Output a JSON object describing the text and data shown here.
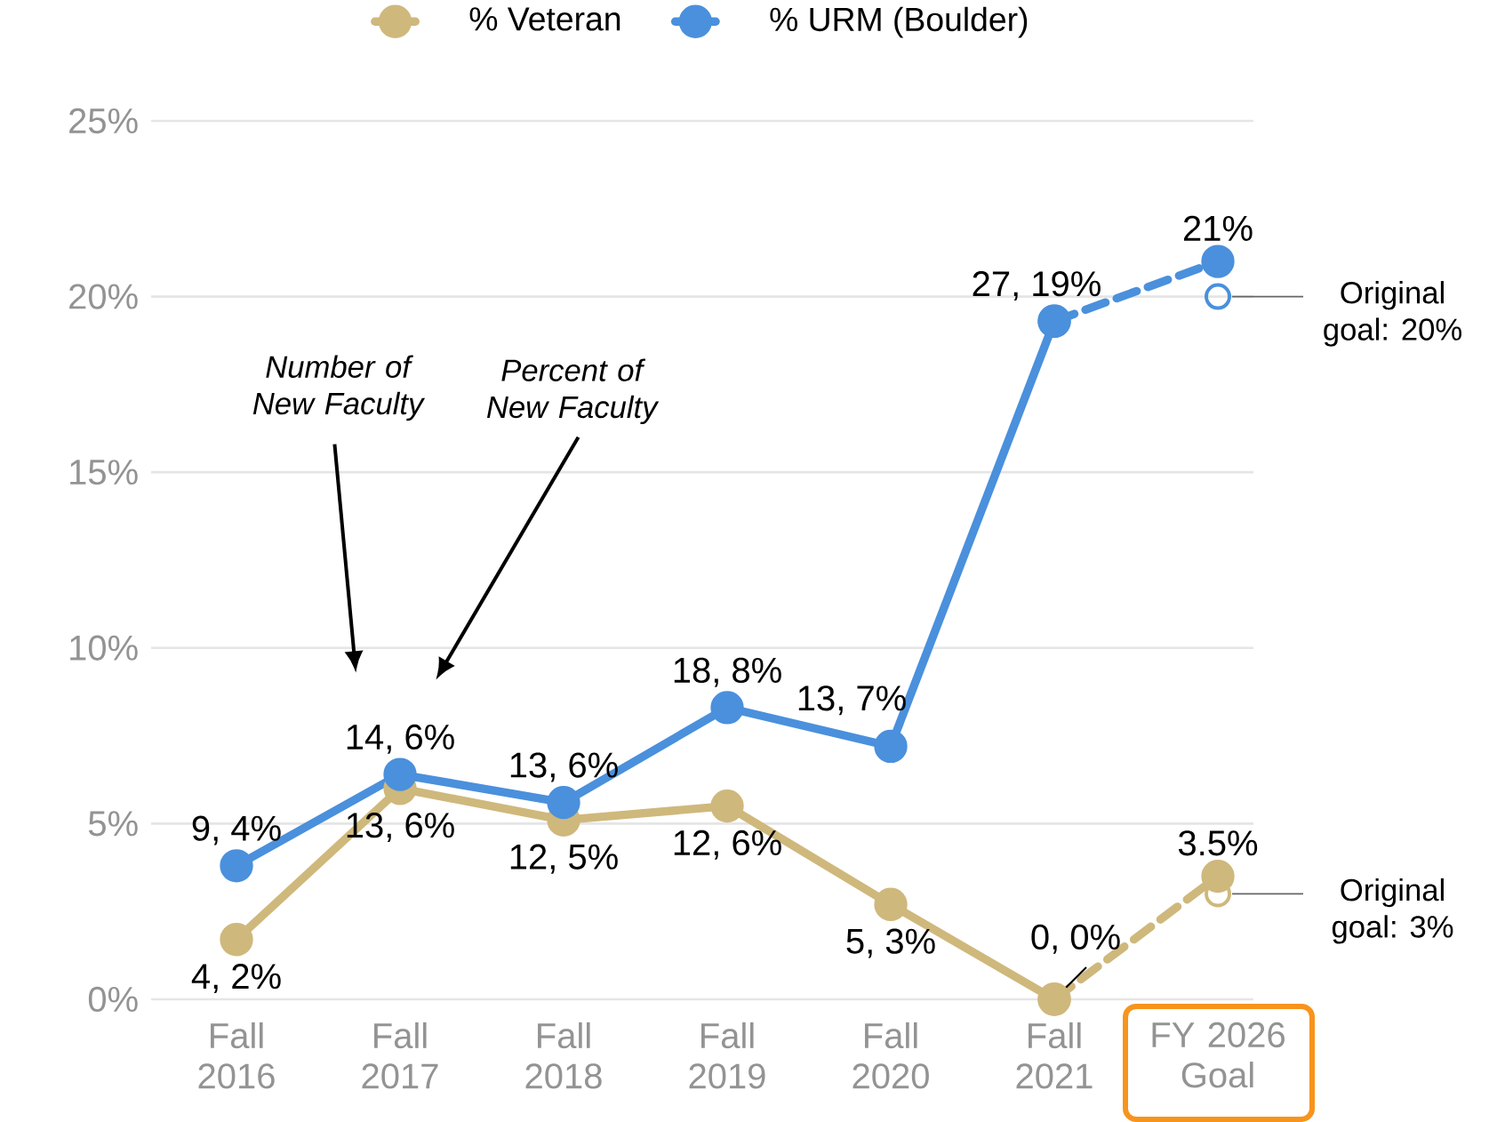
{
  "chart_data": {
    "type": "line",
    "categories": [
      "Fall 2016",
      "Fall 2017",
      "Fall 2018",
      "Fall 2019",
      "Fall 2020",
      "Fall 2021",
      "FY 2026 Goal"
    ],
    "ylim": [
      0,
      25
    ],
    "yticks": [
      {
        "value": 0,
        "label": "0%"
      },
      {
        "value": 5,
        "label": "5%"
      },
      {
        "value": 10,
        "label": "10%"
      },
      {
        "value": 15,
        "label": "15%"
      },
      {
        "value": 20,
        "label": "20%"
      },
      {
        "value": 25,
        "label": "25%"
      }
    ],
    "grid": "y",
    "legend": "top",
    "marker": "circle",
    "series": [
      {
        "name": "% Veteran",
        "color": "#cfb87c",
        "values": [
          1.7,
          6.0,
          5.1,
          5.5,
          2.7,
          0,
          null
        ],
        "value_labels": [
          "4, 2%",
          "13, 6%",
          "12, 5%",
          "12, 6%",
          "5, 3%",
          "0, 0%",
          null
        ]
      },
      {
        "name": "% URM (Boulder)",
        "color": "#4a90dc",
        "values": [
          3.8,
          6.4,
          5.6,
          8.3,
          7.2,
          19.3,
          null
        ],
        "value_labels": [
          "9, 4%",
          "14, 6%",
          "13, 6%",
          "18, 8%",
          "13, 7%",
          "27, 19%",
          null
        ]
      },
      {
        "color": "#cfb87c",
        "line_style": "dashed",
        "values": [
          null,
          null,
          null,
          null,
          null,
          0,
          3.5
        ],
        "value_labels": [
          null,
          null,
          null,
          null,
          null,
          null,
          "3.5%"
        ]
      },
      {
        "color": "#4a90dc",
        "line_style": "dashed",
        "values": [
          null,
          null,
          null,
          null,
          null,
          19.3,
          21.0
        ],
        "value_labels": [
          null,
          null,
          null,
          null,
          null,
          null,
          "21%"
        ]
      },
      {
        "type": "scatter",
        "color": "#4a90dc",
        "values": [
          null,
          null,
          null,
          null,
          null,
          null,
          20
        ]
      },
      {
        "type": "scatter",
        "color": "#cfb87c",
        "values": [
          null,
          null,
          null,
          null,
          null,
          null,
          3
        ]
      }
    ],
    "annotations": [
      "Number of New Faculty",
      "Percent of New Faculty",
      {
        "text": "Original goal: 20%",
        "x": "FY 2026 Goal",
        "y": 20
      },
      {
        "text": "Original goal: 3%",
        "x": "FY 2026 Goal",
        "y": 3
      }
    ]
  }
}
